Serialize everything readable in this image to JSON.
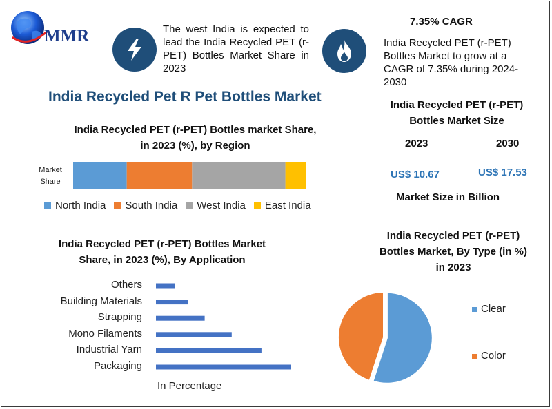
{
  "brand": {
    "logo_text": "MMR"
  },
  "highlights": {
    "region_note": "The west India is expected to lead the India Recycled PET (r-PET) Bottles Market Share in 2023",
    "cagr_title": "7.35% CAGR",
    "cagr_note": "India Recycled PET (r-PET) Bottles Market to grow at a CAGR of 7.35% during 2024-2030",
    "icons": [
      "lightning-icon",
      "flame-icon",
      "globe-icon"
    ]
  },
  "main_title": "India Recycled Pet R Pet Bottles Market",
  "market_size": {
    "title_line1": "India Recycled PET (r-PET)",
    "title_line2": "Bottles Market Size",
    "year1": "2023",
    "year2": "2030",
    "value1": "US$ 10.67",
    "value2": "US$ 17.53",
    "unit": "Market Size in Billion"
  },
  "chart_data": [
    {
      "type": "bar",
      "orientation": "horizontal-stacked",
      "title_line1": "India Recycled PET (r-PET) Bottles market Share,",
      "title_line2": "in 2023 (%), by Region",
      "row_label_line1": "Market",
      "row_label_line2": "Share",
      "series": [
        {
          "name": "North India",
          "value": 23,
          "color": "#5b9bd5"
        },
        {
          "name": "South India",
          "value": 28,
          "color": "#ed7d31"
        },
        {
          "name": "West India",
          "value": 40,
          "color": "#a5a5a5"
        },
        {
          "name": "East India",
          "value": 9,
          "color": "#ffc000"
        }
      ],
      "legend_placement": "bottom"
    },
    {
      "type": "bar",
      "orientation": "horizontal",
      "title_line1": "India Recycled PET (r-PET) Bottles Market",
      "title_line2": "Share, in 2023 (%), By Application",
      "categories": [
        "Others",
        "Building Materials",
        "Strapping",
        "Mono Filaments",
        "Industrial Yarn",
        "Packaging"
      ],
      "values": [
        7,
        12,
        18,
        28,
        39,
        50
      ],
      "xlim": [
        0,
        50
      ],
      "xlabel": "In Percentage",
      "color": "#4472c4"
    },
    {
      "type": "pie",
      "title_line1": "India Recycled PET (r-PET)",
      "title_line2": "Bottles Market, By Type (in %)",
      "title_line3": "in 2023",
      "slices": [
        {
          "name": "Clear",
          "value": 55,
          "color": "#5b9bd5"
        },
        {
          "name": "Color",
          "value": 45,
          "color": "#ed7d31"
        }
      ],
      "legend_placement": "right"
    }
  ]
}
